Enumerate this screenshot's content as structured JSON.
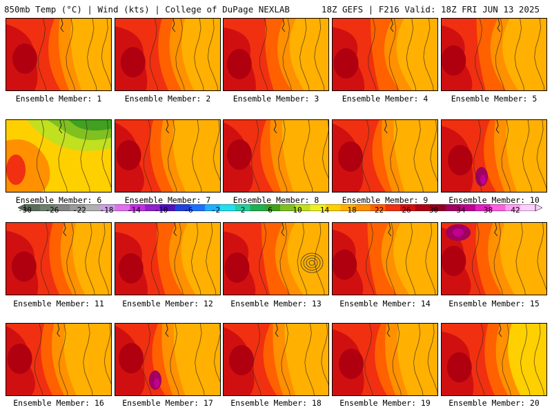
{
  "header": {
    "left": "850mb Temp (°C) | Wind (kts) | College of DuPage NEXLAB",
    "right": "18Z GEFS | F216 Valid: 18Z FRI JUN 13 2025"
  },
  "members": [
    {
      "label": "Ensemble Member: 1",
      "feature": "hot-west"
    },
    {
      "label": "Ensemble Member: 2",
      "feature": "hot-west"
    },
    {
      "label": "Ensemble Member: 3",
      "feature": "hot-west"
    },
    {
      "label": "Ensemble Member: 4",
      "feature": "hot-west"
    },
    {
      "label": "Ensemble Member: 5",
      "feature": "hot-west"
    },
    {
      "label": "Ensemble Member: 6",
      "feature": "green-northeast"
    },
    {
      "label": "Ensemble Member: 7",
      "feature": "hot-west"
    },
    {
      "label": "Ensemble Member: 8",
      "feature": "hot-west"
    },
    {
      "label": "Ensemble Member: 9",
      "feature": "hot-west"
    },
    {
      "label": "Ensemble Member: 10",
      "feature": "magenta-center"
    },
    {
      "label": "Ensemble Member: 11",
      "feature": "hot-west"
    },
    {
      "label": "Ensemble Member: 12",
      "feature": "hot-west"
    },
    {
      "label": "Ensemble Member: 13",
      "feature": "closed-low-east"
    },
    {
      "label": "Ensemble Member: 14",
      "feature": "hot-west"
    },
    {
      "label": "Ensemble Member: 15",
      "feature": "magenta-northwest"
    },
    {
      "label": "Ensemble Member: 16",
      "feature": "hot-west"
    },
    {
      "label": "Ensemble Member: 17",
      "feature": "magenta-center"
    },
    {
      "label": "Ensemble Member: 18",
      "feature": "hot-west"
    },
    {
      "label": "Ensemble Member: 19",
      "feature": "hot-west"
    },
    {
      "label": "Ensemble Member: 20",
      "feature": "yellow-east"
    }
  ],
  "colorbar": {
    "labels": [
      "-30",
      "-26",
      "-22",
      "-18",
      "-14",
      "-10",
      "-6",
      "-2",
      "2",
      "6",
      "10",
      "14",
      "18",
      "22",
      "26",
      "30",
      "34",
      "38",
      "42"
    ],
    "colors": [
      "#5a6e5a",
      "#6f7f6f",
      "#848484",
      "#9a9a9a",
      "#b0b0b0",
      "#c8a0e0",
      "#e070f0",
      "#c030e0",
      "#9020d0",
      "#5010c0",
      "#2040e0",
      "#2070ff",
      "#20b0ff",
      "#20e0f0",
      "#20d0a0",
      "#20b050",
      "#40a020",
      "#80c020",
      "#c0e020",
      "#f0f020",
      "#ffd000",
      "#ffb000",
      "#ff9000",
      "#ff6000",
      "#f03010",
      "#d01010",
      "#b00010",
      "#900020",
      "#a00060",
      "#c00090",
      "#e020c0",
      "#ff60e0",
      "#ffa0f0",
      "#ffd0ff"
    ]
  }
}
